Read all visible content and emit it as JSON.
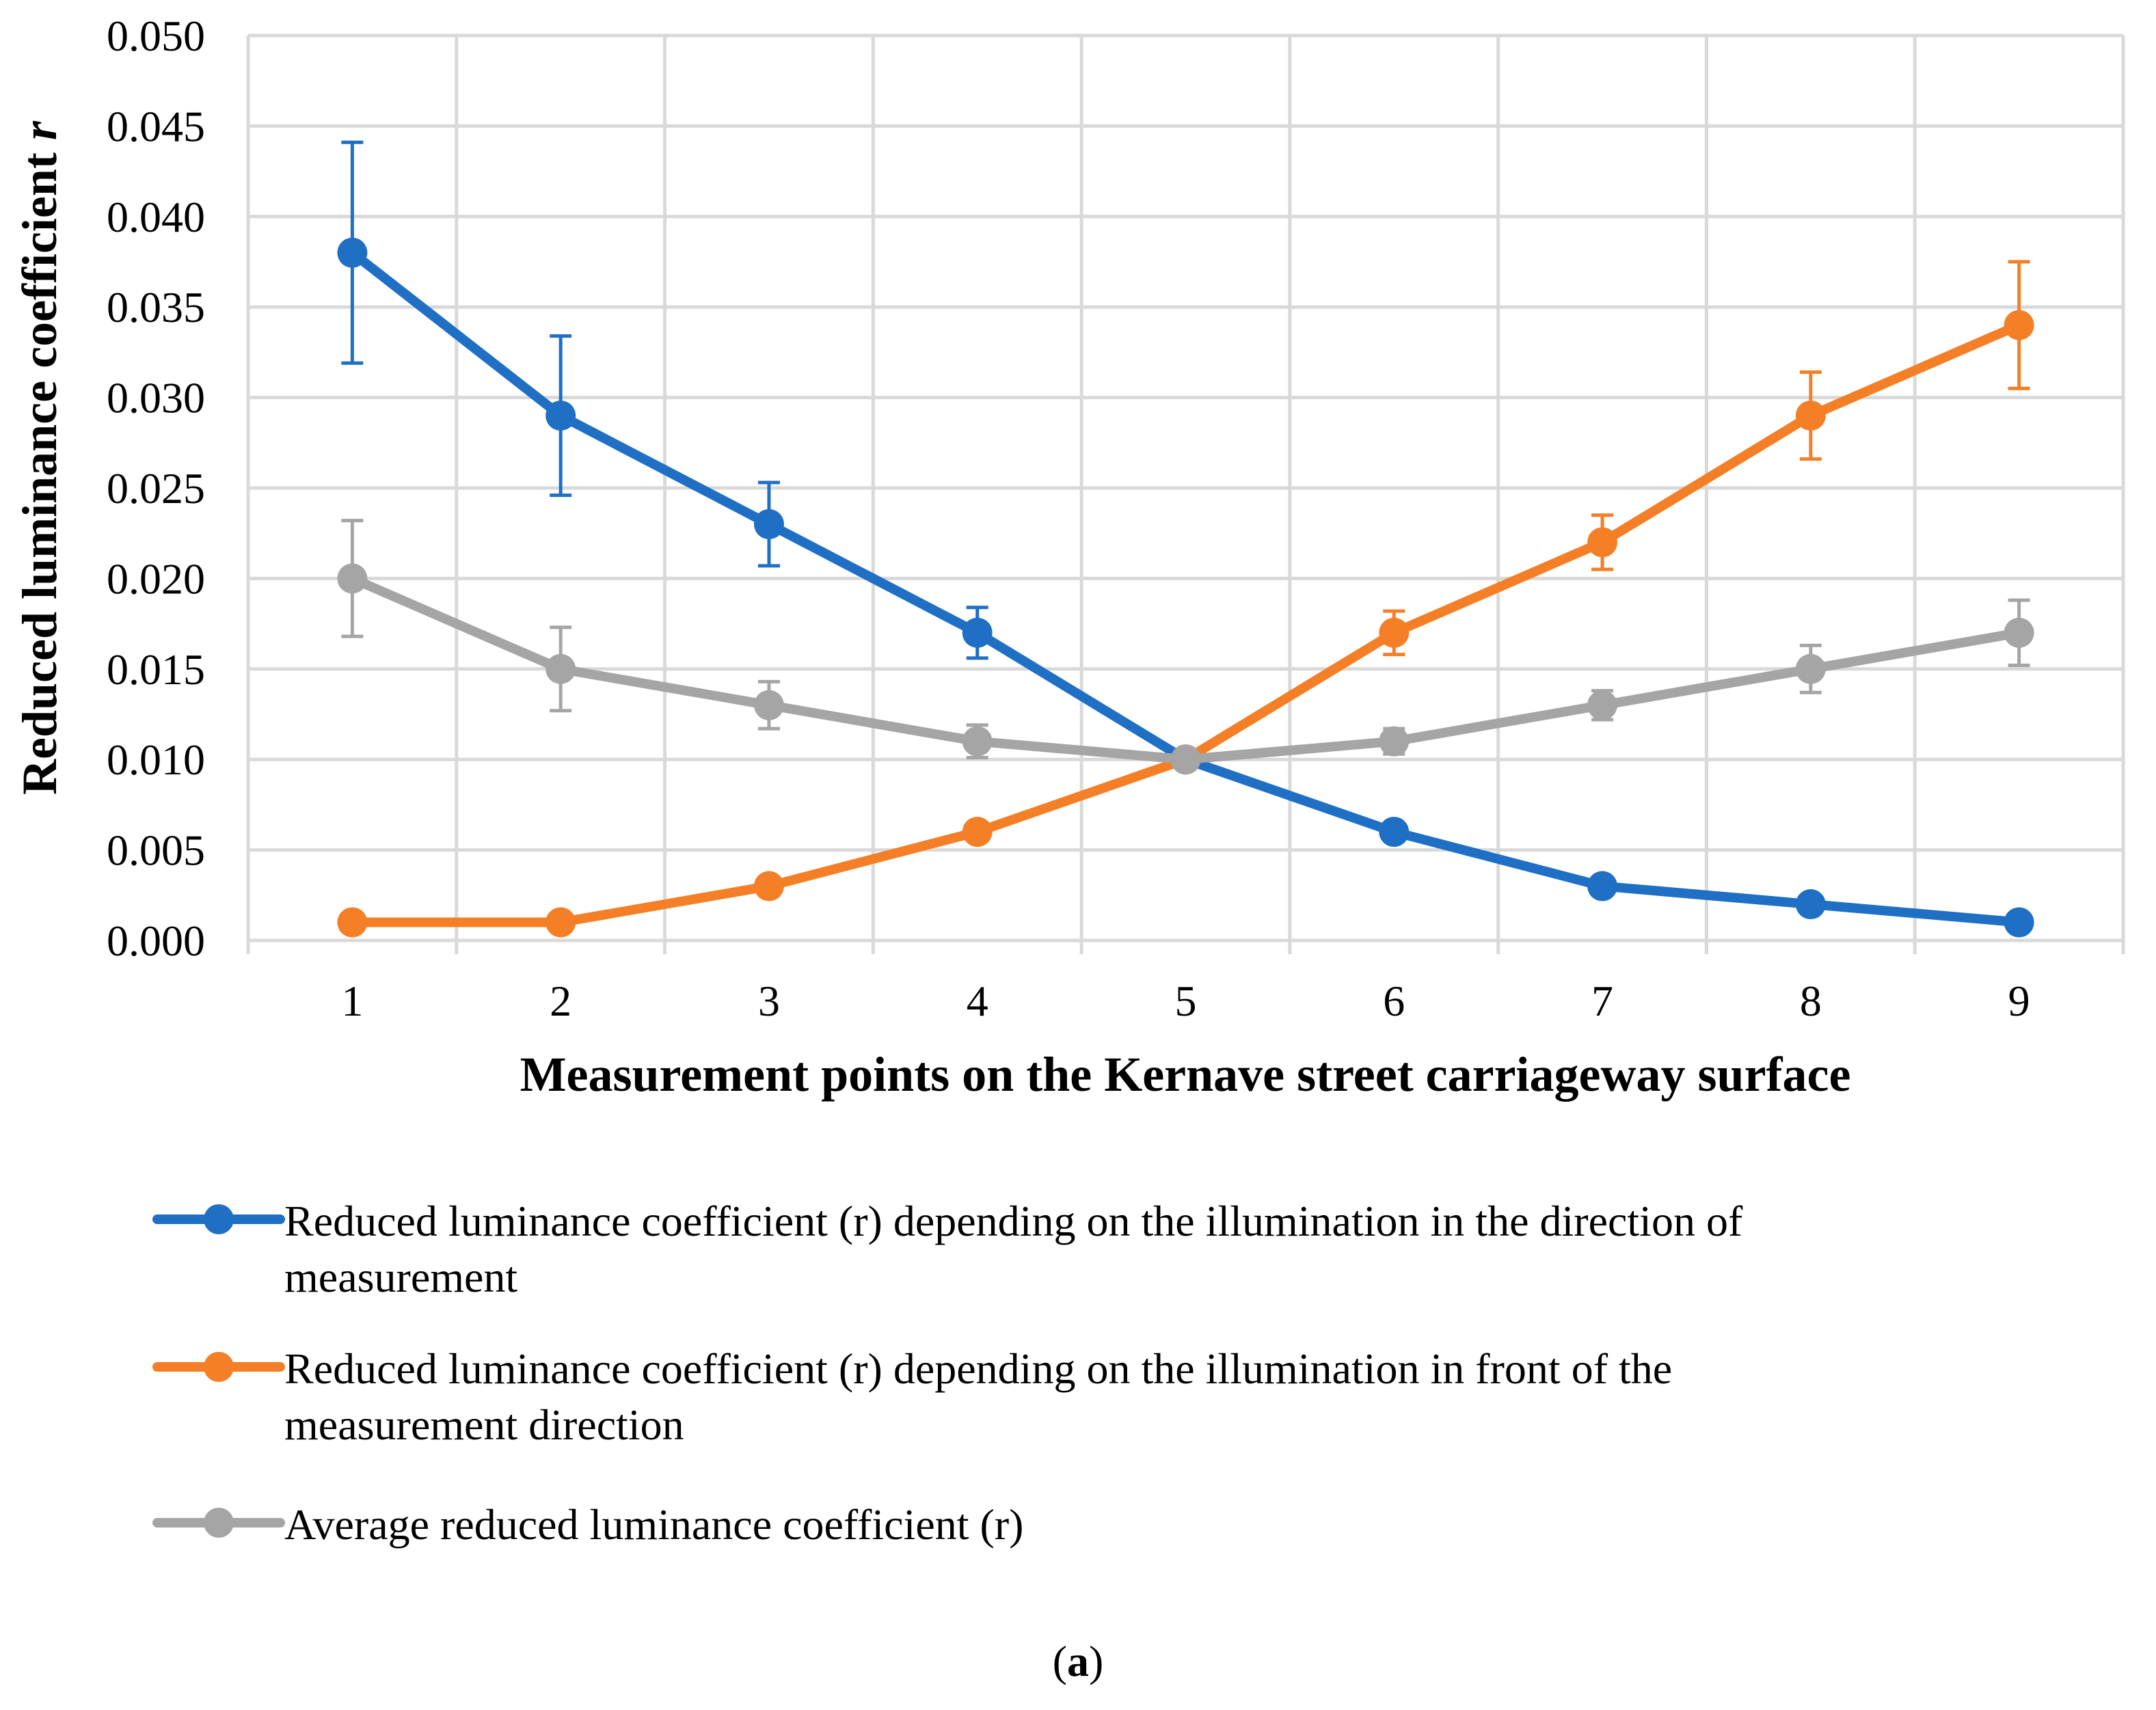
{
  "chart_data": {
    "type": "line",
    "title": "",
    "xlabel": "Measurement points on the Kernave street carriageway surface",
    "ylabel": "Reduced luminance coefficient ",
    "ylabel_symbol": "r",
    "categories": [
      "1",
      "2",
      "3",
      "4",
      "5",
      "6",
      "7",
      "8",
      "9"
    ],
    "ylim": [
      0,
      0.05
    ],
    "yticks": [
      "0.000",
      "0.005",
      "0.010",
      "0.015",
      "0.020",
      "0.025",
      "0.030",
      "0.035",
      "0.040",
      "0.045",
      "0.050"
    ],
    "grid": true,
    "legend_position": "bottom",
    "series": [
      {
        "name": "Reduced luminance coefficient (r) depending on the illumination in the direction of measurement",
        "legend_lines": [
          "Reduced luminance coefficient (r) depending on the illumination in the direction of",
          "measurement"
        ],
        "color": "#1F6FC5",
        "values": [
          0.038,
          0.029,
          0.023,
          0.017,
          0.01,
          0.006,
          0.003,
          0.002,
          0.001
        ],
        "errors": [
          0.0061,
          0.0044,
          0.0023,
          0.0014,
          0,
          0,
          0,
          0,
          0
        ]
      },
      {
        "name": "Reduced luminance coefficient (r) depending on the illumination in front of the measurement direction",
        "legend_lines": [
          "Reduced luminance coefficient (r) depending on the illumination in front of the",
          "measurement direction"
        ],
        "color": "#F47F26",
        "values": [
          0.001,
          0.001,
          0.003,
          0.006,
          0.01,
          0.017,
          0.022,
          0.029,
          0.034
        ],
        "errors": [
          0,
          0,
          0,
          0,
          0,
          0.0012,
          0.0015,
          0.0024,
          0.0035
        ]
      },
      {
        "name": "Average reduced luminance coefficient (r)",
        "legend_lines": [
          "Average reduced luminance coefficient (r)"
        ],
        "color": "#A5A5A5",
        "values": [
          0.02,
          0.015,
          0.013,
          0.011,
          0.01,
          0.011,
          0.013,
          0.015,
          0.017
        ],
        "errors": [
          0.0032,
          0.0023,
          0.0013,
          0.0009,
          0.0005,
          0.0007,
          0.0008,
          0.0013,
          0.0018
        ]
      }
    ]
  },
  "caption": {
    "open": "(",
    "letter": "a",
    "close": ")"
  }
}
